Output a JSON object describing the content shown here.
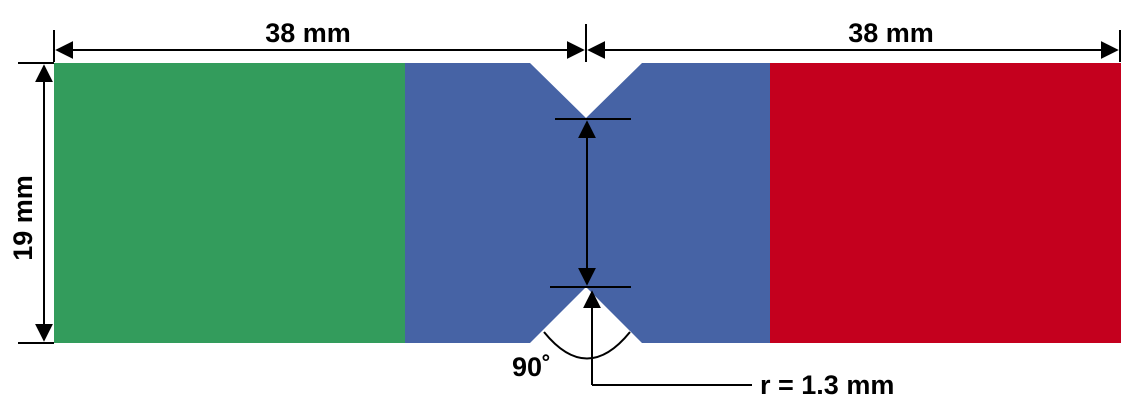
{
  "dimensions": {
    "left_width": "38 mm",
    "right_width": "38 mm",
    "height": "19 mm",
    "notch_angle": "90˚",
    "notch_radius": "r = 1.3 mm"
  },
  "colors": {
    "left_block": "#339c5c",
    "middle_block": "#4663a5",
    "right_block": "#c4001e",
    "lines": "#000000",
    "background": "#ffffff"
  }
}
